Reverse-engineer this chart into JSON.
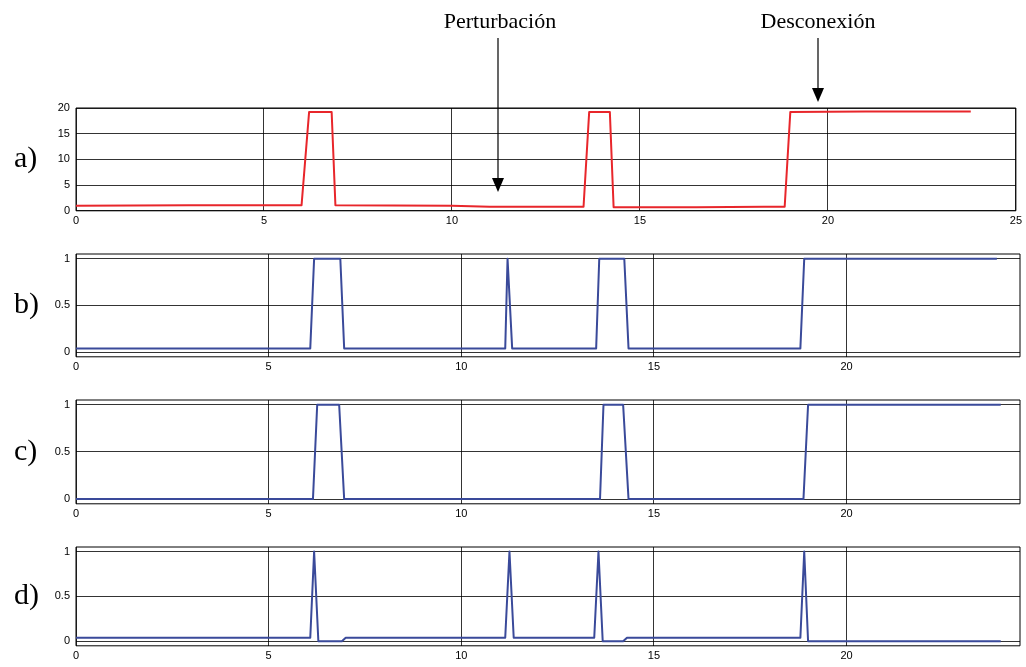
{
  "chart_data": [
    {
      "type": "line",
      "title": "a)",
      "xlim": [
        0,
        25
      ],
      "xticks": [
        0,
        5,
        10,
        15,
        20,
        25
      ],
      "ylim": [
        0,
        20
      ],
      "yticks": [
        0,
        5,
        10,
        15,
        20
      ],
      "grid": true,
      "legend": false,
      "marker": "none",
      "line_style": "solid",
      "annotations": [
        "Perturbación",
        "Desconexión"
      ],
      "series": [
        {
          "color": "#e8262b",
          "x": [
            0,
            3,
            6.0,
            6.2,
            6.8,
            6.9,
            10,
            11,
            13.5,
            13.65,
            14.2,
            14.3,
            16.5,
            18.85,
            19.0,
            21,
            23.8
          ],
          "values": [
            1,
            1.1,
            1.1,
            19.2,
            19.2,
            1.1,
            1.0,
            0.8,
            0.8,
            19.2,
            19.2,
            0.7,
            0.7,
            0.8,
            19.2,
            19.3,
            19.3
          ]
        }
      ]
    },
    {
      "type": "line",
      "title": "b)",
      "xlim": [
        0,
        24.5
      ],
      "xticks": [
        0,
        5,
        10,
        15,
        20
      ],
      "ylim": [
        -0.05,
        1.05
      ],
      "yticks": [
        0,
        0.5,
        1
      ],
      "grid": true,
      "legend": false,
      "marker": "none",
      "line_style": "solid",
      "series": [
        {
          "color": "#3a4a9a",
          "x": [
            0,
            6.08,
            6.18,
            6.86,
            6.96,
            11.14,
            11.2,
            11.32,
            13.5,
            13.58,
            14.23,
            14.34,
            18.8,
            18.9,
            23.9
          ],
          "values": [
            0.04,
            0.04,
            1,
            1,
            0.04,
            0.04,
            1,
            0.04,
            0.04,
            1,
            1,
            0.04,
            0.04,
            1,
            1
          ]
        }
      ]
    },
    {
      "type": "line",
      "title": "c)",
      "xlim": [
        0,
        24.5
      ],
      "xticks": [
        0,
        5,
        10,
        15,
        20
      ],
      "ylim": [
        -0.05,
        1.05
      ],
      "yticks": [
        0,
        0.5,
        1
      ],
      "grid": true,
      "legend": false,
      "marker": "none",
      "line_style": "solid",
      "series": [
        {
          "color": "#3a4a9a",
          "x": [
            0,
            6.15,
            6.26,
            6.83,
            6.96,
            13.6,
            13.69,
            14.2,
            14.34,
            18.88,
            19.0,
            24
          ],
          "values": [
            0,
            0,
            1,
            1,
            0,
            0,
            1,
            1,
            0,
            0,
            1,
            1
          ]
        }
      ]
    },
    {
      "type": "line",
      "title": "d)",
      "xlim": [
        0,
        24.5
      ],
      "xticks": [
        0,
        5,
        10,
        15,
        20
      ],
      "ylim": [
        -0.05,
        1.05
      ],
      "yticks": [
        0,
        0.5,
        1
      ],
      "grid": true,
      "legend": false,
      "marker": "none",
      "line_style": "solid",
      "series": [
        {
          "color": "#3a4a9a",
          "x": [
            0,
            6.08,
            6.18,
            6.29,
            6.9,
            7.0,
            11.14,
            11.25,
            11.36,
            13.45,
            13.56,
            13.67,
            14.2,
            14.3,
            18.8,
            18.9,
            19.0,
            24
          ],
          "values": [
            0.04,
            0.04,
            1,
            0,
            0,
            0.04,
            0.04,
            1,
            0.04,
            0.04,
            1,
            0,
            0,
            0.04,
            0.04,
            1,
            0,
            0
          ]
        }
      ]
    }
  ]
}
